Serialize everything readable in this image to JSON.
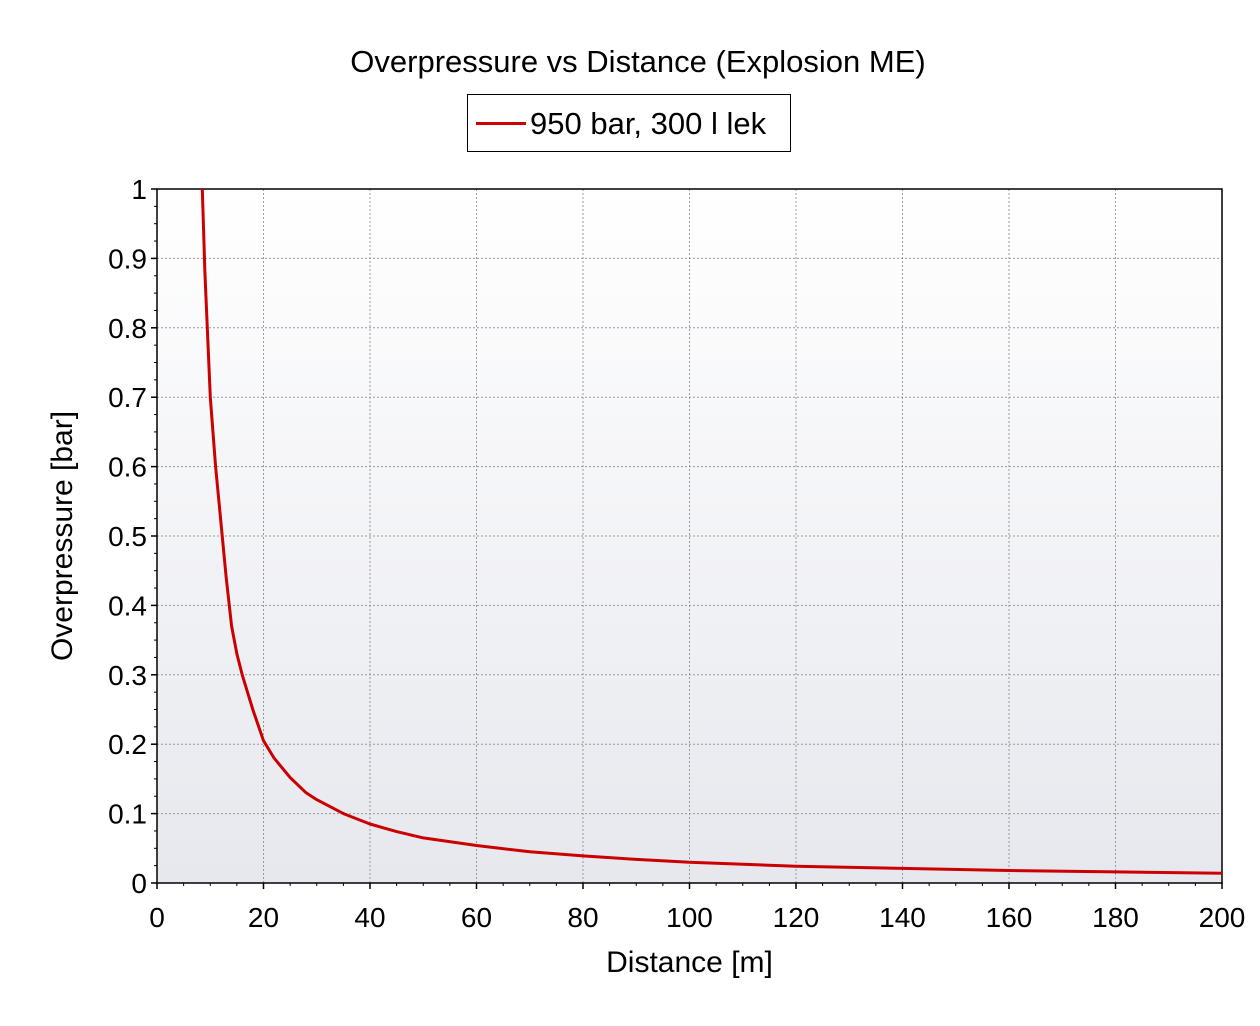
{
  "chart_data": {
    "type": "line",
    "title": "Overpressure vs Distance (Explosion ME)",
    "xlabel": "Distance [m]",
    "ylabel": "Overpressure [bar]",
    "xlim": [
      0,
      200
    ],
    "ylim": [
      0,
      1
    ],
    "xticks": [
      "0",
      "20",
      "40",
      "60",
      "80",
      "100",
      "120",
      "140",
      "160",
      "180",
      "200"
    ],
    "yticks": [
      "0",
      "0.1",
      "0.2",
      "0.3",
      "0.4",
      "0.5",
      "0.6",
      "0.7",
      "0.8",
      "0.9",
      "1"
    ],
    "grid": true,
    "legend_position": "top-center",
    "series": [
      {
        "name": "950 bar, 300 l lek",
        "color": "#cc0000",
        "x": [
          8.5,
          9,
          10,
          11,
          12,
          13,
          14,
          15,
          16,
          18,
          20,
          22,
          25,
          28,
          30,
          35,
          40,
          45,
          50,
          60,
          70,
          80,
          90,
          100,
          120,
          140,
          160,
          180,
          200
        ],
        "y": [
          1.0,
          0.88,
          0.7,
          0.6,
          0.52,
          0.44,
          0.37,
          0.33,
          0.3,
          0.25,
          0.205,
          0.18,
          0.152,
          0.13,
          0.12,
          0.1,
          0.085,
          0.074,
          0.065,
          0.054,
          0.045,
          0.039,
          0.034,
          0.03,
          0.024,
          0.021,
          0.018,
          0.016,
          0.014
        ]
      }
    ]
  }
}
